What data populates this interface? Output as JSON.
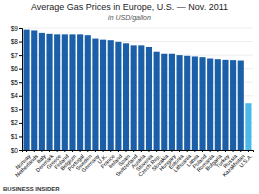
{
  "chart_data": {
    "type": "bar",
    "title": "Average Gas Prices in Europe, U.S. — Nov. 2011",
    "subtitle": "in USD/gallon",
    "annotations": [
      "BUSINESS INSIDER"
    ],
    "categories": [
      "Norway",
      "Netherlands",
      "Italy",
      "Denmark",
      "Greece",
      "Finland",
      "Belgium",
      "Portugal",
      "Sweden",
      "Germany",
      "U.K.",
      "France",
      "Ireland",
      "Spain",
      "Switzerland",
      "Austria",
      "Slovenia",
      "Czech Rep.",
      "Slovakia",
      "Hungary",
      "Estonia",
      "Lithuania",
      "Latvia",
      "Poland",
      "Romania",
      "Bulgaria",
      "Turkey",
      "Russia",
      "Kazakhstan",
      "U.S.A."
    ],
    "values": [
      8.88,
      8.82,
      8.64,
      8.57,
      8.53,
      8.53,
      8.53,
      8.53,
      8.47,
      8.22,
      8.14,
      8.1,
      7.98,
      7.87,
      7.72,
      7.72,
      7.6,
      7.25,
      7.1,
      7.1,
      7.0,
      6.95,
      6.9,
      6.85,
      6.75,
      6.7,
      6.65,
      6.63,
      6.6,
      3.45
    ],
    "colors": [
      "#1a5fa8",
      "#1a5fa8",
      "#1a5fa8",
      "#1a5fa8",
      "#1a5fa8",
      "#1a5fa8",
      "#1a5fa8",
      "#1a5fa8",
      "#1a5fa8",
      "#1a5fa8",
      "#1a5fa8",
      "#1a5fa8",
      "#1a5fa8",
      "#1a5fa8",
      "#1a5fa8",
      "#1a5fa8",
      "#1a5fa8",
      "#1a5fa8",
      "#1a5fa8",
      "#1a5fa8",
      "#1a5fa8",
      "#1a5fa8",
      "#1a5fa8",
      "#1a5fa8",
      "#1a5fa8",
      "#1a5fa8",
      "#1a5fa8",
      "#1a5fa8",
      "#1a5fa8",
      "#4ab8e8"
    ],
    "ylim": [
      0,
      9
    ],
    "yticks": [
      {
        "value": 0,
        "label": "$0"
      },
      {
        "value": 1,
        "label": "$1"
      },
      {
        "value": 2,
        "label": "$2"
      },
      {
        "value": 3,
        "label": "$3"
      },
      {
        "value": 4,
        "label": "$4"
      },
      {
        "value": 5,
        "label": "$5"
      },
      {
        "value": 6,
        "label": "$6"
      },
      {
        "value": 7,
        "label": "$7"
      },
      {
        "value": 8,
        "label": "$8"
      },
      {
        "value": 9,
        "label": "$9"
      }
    ],
    "grid": true
  }
}
